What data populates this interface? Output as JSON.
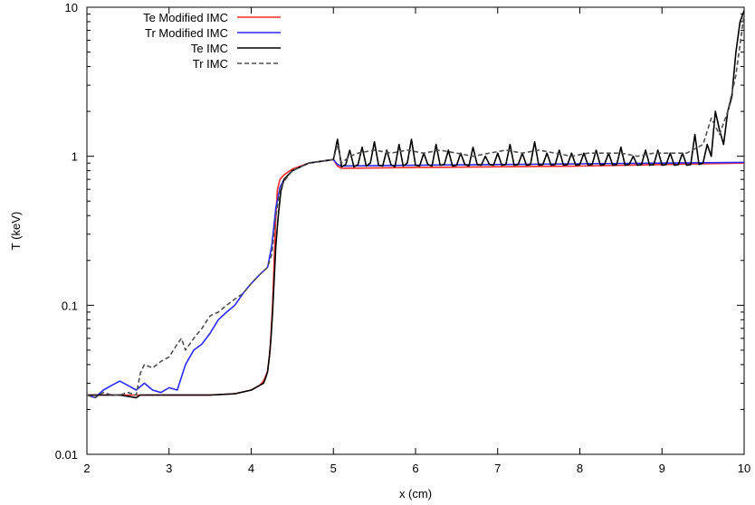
{
  "chart_data": {
    "type": "line",
    "title": "",
    "xlabel": "x (cm)",
    "ylabel": "T (keV)",
    "xlim": [
      2,
      10
    ],
    "ylim": [
      0.01,
      10
    ],
    "yscale": "log",
    "grid": false,
    "legend_position": "top-left",
    "x_ticks": [
      2,
      3,
      4,
      5,
      6,
      7,
      8,
      9,
      10
    ],
    "x_tick_labels": [
      "2",
      "3",
      "4",
      "5",
      "6",
      "7",
      "8",
      "9",
      "10"
    ],
    "y_ticks": [
      0.01,
      0.1,
      1,
      10
    ],
    "y_tick_labels": [
      "0.01",
      "0.1",
      "1",
      "10"
    ],
    "series": [
      {
        "name": "Te Modified IMC",
        "color": "#ff2a2a",
        "dash": "solid",
        "x": [
          2.0,
          2.5,
          3.0,
          3.5,
          3.8,
          4.0,
          4.1,
          4.15,
          4.2,
          4.23,
          4.26,
          4.28,
          4.3,
          4.32,
          4.35,
          4.4,
          4.5,
          4.7,
          5.0,
          5.05,
          5.1,
          6.0,
          7.0,
          8.0,
          9.0,
          10.0
        ],
        "y": [
          0.025,
          0.025,
          0.025,
          0.025,
          0.0255,
          0.027,
          0.029,
          0.031,
          0.036,
          0.05,
          0.1,
          0.2,
          0.4,
          0.6,
          0.7,
          0.75,
          0.82,
          0.9,
          0.95,
          0.86,
          0.83,
          0.84,
          0.85,
          0.86,
          0.88,
          0.9
        ]
      },
      {
        "name": "Tr Modified IMC",
        "color": "#2a2aff",
        "dash": "solid",
        "x": [
          2.0,
          2.1,
          2.2,
          2.3,
          2.4,
          2.5,
          2.6,
          2.7,
          2.8,
          2.9,
          3.0,
          3.1,
          3.2,
          3.3,
          3.4,
          3.5,
          3.6,
          3.7,
          3.8,
          3.9,
          4.0,
          4.1,
          4.2,
          4.25,
          4.3,
          4.35,
          4.4,
          4.5,
          4.7,
          5.0,
          5.05,
          5.1,
          6.0,
          7.0,
          8.0,
          9.0,
          10.0
        ],
        "y": [
          0.025,
          0.024,
          0.027,
          0.029,
          0.031,
          0.029,
          0.027,
          0.03,
          0.027,
          0.026,
          0.028,
          0.027,
          0.04,
          0.05,
          0.055,
          0.065,
          0.08,
          0.09,
          0.1,
          0.12,
          0.14,
          0.16,
          0.18,
          0.25,
          0.45,
          0.62,
          0.7,
          0.8,
          0.9,
          0.95,
          0.88,
          0.86,
          0.87,
          0.88,
          0.89,
          0.9,
          0.91
        ]
      },
      {
        "name": "Te IMC",
        "color": "#000000",
        "dash": "solid",
        "x": [
          2.0,
          2.4,
          2.6,
          2.65,
          3.0,
          3.5,
          3.8,
          4.0,
          4.1,
          4.15,
          4.18,
          4.2,
          4.22,
          4.24,
          4.26,
          4.28,
          4.3,
          4.33,
          4.36,
          4.4,
          4.5,
          4.7,
          5.0,
          5.05,
          5.1,
          5.15,
          5.2,
          5.25,
          5.3,
          5.35,
          5.4,
          5.45,
          5.5,
          5.55,
          5.6,
          5.65,
          5.7,
          5.75,
          5.8,
          5.85,
          5.9,
          5.95,
          6.0,
          6.05,
          6.1,
          6.15,
          6.2,
          6.25,
          6.3,
          6.35,
          6.4,
          6.45,
          6.5,
          6.55,
          6.6,
          6.65,
          6.7,
          6.75,
          6.8,
          6.85,
          6.9,
          6.95,
          7.0,
          7.05,
          7.1,
          7.15,
          7.2,
          7.25,
          7.3,
          7.35,
          7.4,
          7.45,
          7.5,
          7.55,
          7.6,
          7.65,
          7.7,
          7.75,
          7.8,
          7.85,
          7.9,
          7.95,
          8.0,
          8.05,
          8.1,
          8.15,
          8.2,
          8.25,
          8.3,
          8.35,
          8.4,
          8.45,
          8.5,
          8.55,
          8.6,
          8.65,
          8.7,
          8.75,
          8.8,
          8.85,
          8.9,
          8.95,
          9.0,
          9.05,
          9.1,
          9.15,
          9.2,
          9.25,
          9.3,
          9.35,
          9.4,
          9.45,
          9.5,
          9.55,
          9.6,
          9.65,
          9.7,
          9.75,
          9.8,
          9.85,
          9.9,
          9.95,
          10.0
        ],
        "y": [
          0.025,
          0.025,
          0.024,
          0.025,
          0.025,
          0.025,
          0.0255,
          0.027,
          0.029,
          0.03,
          0.033,
          0.036,
          0.045,
          0.06,
          0.09,
          0.15,
          0.25,
          0.4,
          0.58,
          0.7,
          0.8,
          0.9,
          0.95,
          1.3,
          0.85,
          0.88,
          1.1,
          0.85,
          0.88,
          1.15,
          0.86,
          0.9,
          1.25,
          0.87,
          0.86,
          1.1,
          0.88,
          0.85,
          1.2,
          0.86,
          0.9,
          1.3,
          0.87,
          0.86,
          1.05,
          0.88,
          0.86,
          1.2,
          0.87,
          0.88,
          1.1,
          0.86,
          0.87,
          1.05,
          0.88,
          0.86,
          1.15,
          0.88,
          0.87,
          1.0,
          0.88,
          0.87,
          1.05,
          0.87,
          0.88,
          1.2,
          0.87,
          0.88,
          1.05,
          0.87,
          0.88,
          1.25,
          0.87,
          0.88,
          1.05,
          0.87,
          0.88,
          1.1,
          0.87,
          0.88,
          1.05,
          0.87,
          0.88,
          1.05,
          0.87,
          0.88,
          1.1,
          0.87,
          0.88,
          1.05,
          0.87,
          0.88,
          1.15,
          0.87,
          0.88,
          1.0,
          0.87,
          0.88,
          1.1,
          0.87,
          0.88,
          1.1,
          0.87,
          0.88,
          1.05,
          0.87,
          0.88,
          1.05,
          0.87,
          0.88,
          1.4,
          0.88,
          0.9,
          1.2,
          1.0,
          2.0,
          1.5,
          1.2,
          2.0,
          2.5,
          5.0,
          8.0,
          9.5
        ]
      },
      {
        "name": "Tr IMC",
        "color": "#505050",
        "dash": "dashed",
        "x": [
          2.0,
          2.1,
          2.2,
          2.3,
          2.4,
          2.5,
          2.6,
          2.65,
          2.7,
          2.8,
          2.9,
          3.0,
          3.1,
          3.15,
          3.2,
          3.3,
          3.4,
          3.5,
          3.6,
          3.7,
          3.8,
          3.9,
          4.0,
          4.1,
          4.2,
          4.25,
          4.3,
          4.35,
          4.4,
          4.5,
          4.7,
          5.0,
          5.05,
          5.1,
          5.2,
          5.3,
          5.5,
          5.7,
          5.9,
          6.1,
          6.3,
          6.5,
          6.7,
          6.9,
          7.1,
          7.3,
          7.5,
          7.7,
          7.9,
          8.1,
          8.3,
          8.5,
          8.7,
          8.9,
          9.1,
          9.3,
          9.5,
          9.6,
          9.7,
          9.8,
          9.9,
          10.0
        ],
        "y": [
          0.025,
          0.024,
          0.026,
          0.025,
          0.025,
          0.026,
          0.025,
          0.035,
          0.04,
          0.038,
          0.042,
          0.045,
          0.055,
          0.06,
          0.05,
          0.06,
          0.07,
          0.085,
          0.09,
          0.1,
          0.11,
          0.12,
          0.14,
          0.16,
          0.18,
          0.22,
          0.4,
          0.6,
          0.68,
          0.8,
          0.9,
          0.95,
          1.2,
          0.9,
          1.0,
          1.05,
          1.1,
          1.05,
          1.1,
          1.05,
          1.1,
          1.05,
          1.0,
          1.05,
          1.1,
          1.05,
          1.1,
          1.05,
          1.0,
          1.05,
          1.05,
          1.05,
          1.0,
          1.05,
          1.05,
          1.05,
          1.2,
          1.8,
          1.4,
          2.0,
          3.5,
          9.0
        ]
      }
    ]
  }
}
